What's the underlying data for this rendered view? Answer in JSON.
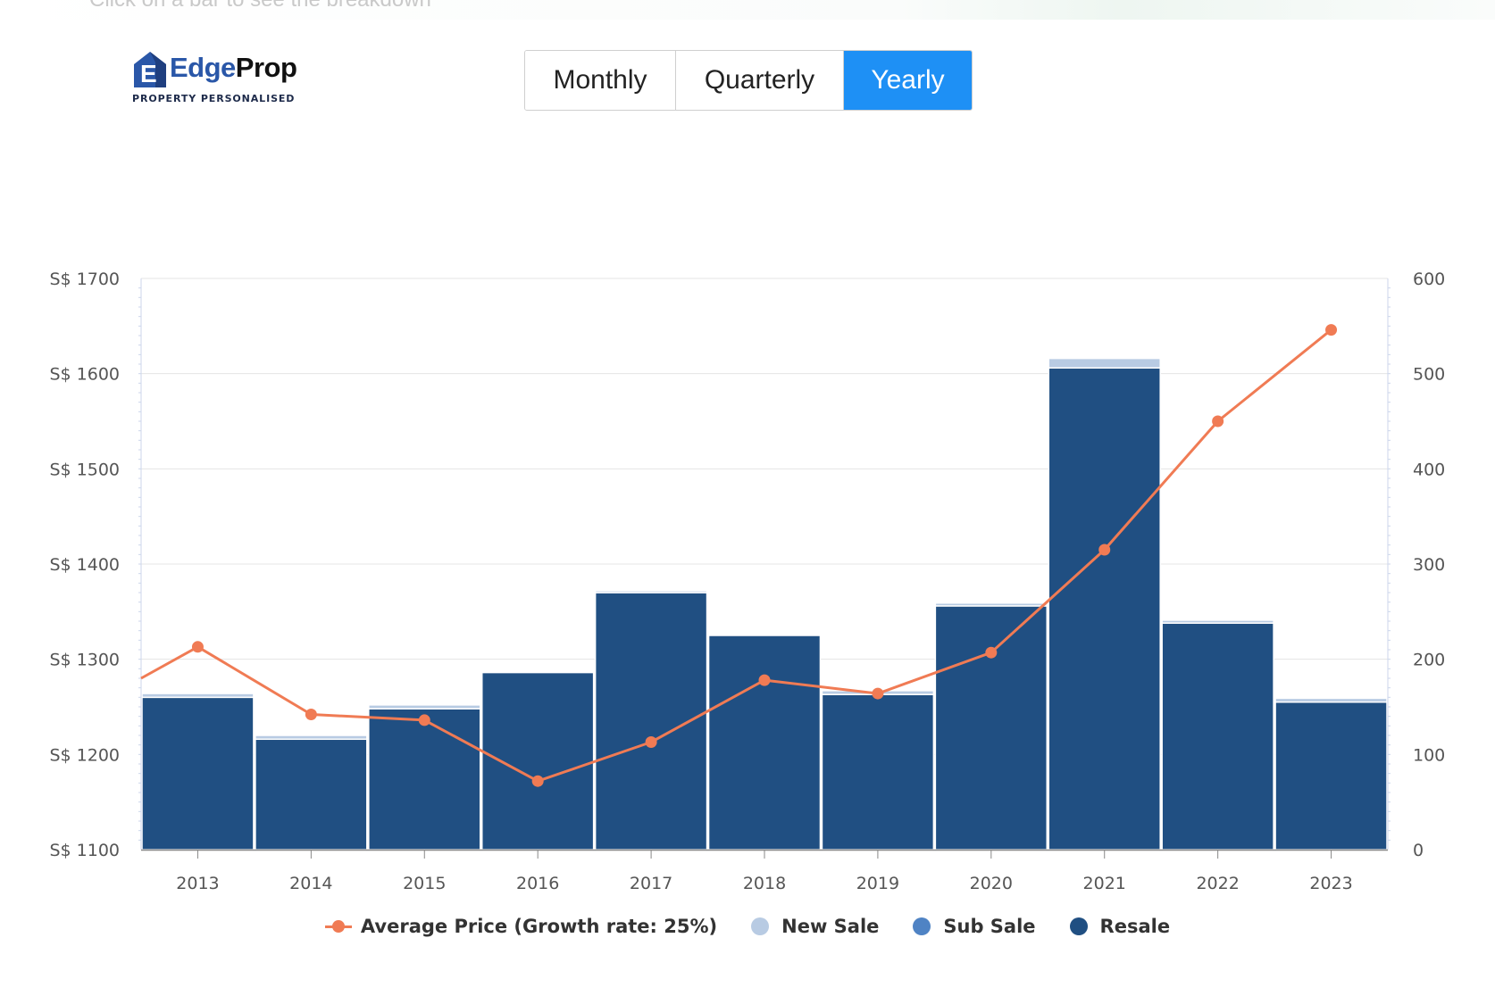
{
  "top_hint": "Click on a bar to see the breakdown",
  "brand": {
    "name_part1": "Edge",
    "name_part2": "Prop",
    "tagline": "PROPERTY PERSONALISED"
  },
  "period_toggle": {
    "options": [
      "Monthly",
      "Quarterly",
      "Yearly"
    ],
    "selected": "Yearly"
  },
  "colors": {
    "new_sale": "#b8cbe3",
    "sub_sale": "#4f83c4",
    "resale": "#204f82",
    "average_price": "#f07b54",
    "toggle_active": "#1e90f5"
  },
  "chart_data": {
    "type": "bar",
    "categories": [
      "2013",
      "2014",
      "2015",
      "2016",
      "2017",
      "2018",
      "2019",
      "2020",
      "2021",
      "2022",
      "2023"
    ],
    "y_left": {
      "range": [
        1100,
        1700
      ],
      "ticks": [
        1100,
        1200,
        1300,
        1400,
        1500,
        1600,
        1700
      ],
      "tick_prefix": "S$ "
    },
    "y_right": {
      "range": [
        0,
        600
      ],
      "ticks": [
        0,
        100,
        200,
        300,
        400,
        500,
        600
      ]
    },
    "series": [
      {
        "name": "New Sale",
        "type": "bar",
        "axis": "right",
        "stack": "transactions",
        "values": [
          4,
          4,
          4,
          0,
          2,
          0,
          4,
          3,
          10,
          3,
          4
        ]
      },
      {
        "name": "Sub Sale",
        "type": "bar",
        "axis": "right",
        "stack": "transactions",
        "values": [
          0,
          0,
          0,
          0,
          0,
          0,
          0,
          0,
          0,
          0,
          0
        ]
      },
      {
        "name": "Resale",
        "type": "bar",
        "axis": "right",
        "stack": "transactions",
        "values": [
          160,
          116,
          148,
          186,
          270,
          225,
          163,
          256,
          506,
          238,
          155
        ]
      },
      {
        "name": "Average Price (Growth rate: 25%)",
        "type": "line",
        "axis": "left",
        "values": [
          1313,
          1242,
          1236,
          1172,
          1213,
          1278,
          1264,
          1307,
          1415,
          1550,
          1646
        ],
        "left_edge_value": 1280
      }
    ],
    "grid": true,
    "legend_position": "bottom-center"
  }
}
